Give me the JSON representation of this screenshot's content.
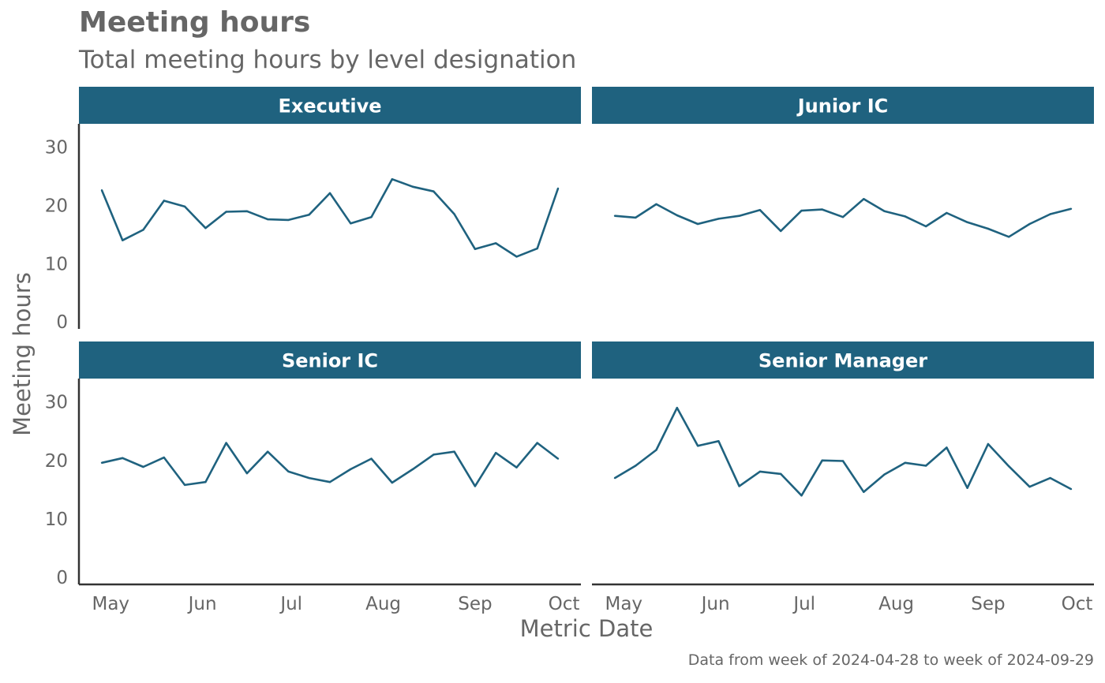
{
  "chart_data": {
    "type": "line",
    "title": "Meeting hours",
    "subtitle": "Total meeting hours by level designation",
    "xlabel": "Metric Date",
    "ylabel": "Meeting hours",
    "caption": "Data from week of 2024-04-28 to week of 2024-09-29",
    "ylim": [
      0,
      30
    ],
    "y_ticks": [
      "0",
      "10",
      "20",
      "30"
    ],
    "x_ticks": [
      "May",
      "Jun",
      "Jul",
      "Aug",
      "Sep",
      "Oct"
    ],
    "line_color": "#1f627f",
    "strip_color": "#1f627f",
    "x": [
      "2024-04-28",
      "2024-05-05",
      "2024-05-12",
      "2024-05-19",
      "2024-05-26",
      "2024-06-02",
      "2024-06-09",
      "2024-06-16",
      "2024-06-23",
      "2024-06-30",
      "2024-07-07",
      "2024-07-14",
      "2024-07-21",
      "2024-07-28",
      "2024-08-04",
      "2024-08-11",
      "2024-08-18",
      "2024-08-25",
      "2024-09-01",
      "2024-09-08",
      "2024-09-15",
      "2024-09-22",
      "2024-09-29"
    ],
    "panels": [
      {
        "name": "Executive",
        "values": [
          22.6,
          14.0,
          15.8,
          20.8,
          19.8,
          16.1,
          18.9,
          19.0,
          17.6,
          17.5,
          18.4,
          22.1,
          16.9,
          18.0,
          24.5,
          23.2,
          22.4,
          18.5,
          12.5,
          13.5,
          11.2,
          12.6,
          22.9
        ]
      },
      {
        "name": "Junior IC",
        "values": [
          18.2,
          17.9,
          20.2,
          18.3,
          16.8,
          17.7,
          18.2,
          19.2,
          15.6,
          19.1,
          19.3,
          18.0,
          21.1,
          19.0,
          18.1,
          16.4,
          18.7,
          17.1,
          16.0,
          14.6,
          16.8,
          18.5,
          19.4
        ]
      },
      {
        "name": "Senior IC",
        "values": [
          19.6,
          20.4,
          18.9,
          20.5,
          15.8,
          16.3,
          23.0,
          17.8,
          21.5,
          18.1,
          17.0,
          16.3,
          18.5,
          20.3,
          16.2,
          18.5,
          21.0,
          21.5,
          15.6,
          21.3,
          18.8,
          23.0,
          20.3
        ]
      },
      {
        "name": "Senior Manager",
        "values": [
          17.0,
          19.1,
          21.8,
          29.0,
          22.5,
          23.3,
          15.6,
          18.1,
          17.7,
          14.0,
          20.0,
          19.9,
          14.6,
          17.6,
          19.6,
          19.1,
          22.2,
          15.3,
          22.8,
          19.0,
          15.5,
          17.0,
          15.1
        ]
      }
    ]
  }
}
